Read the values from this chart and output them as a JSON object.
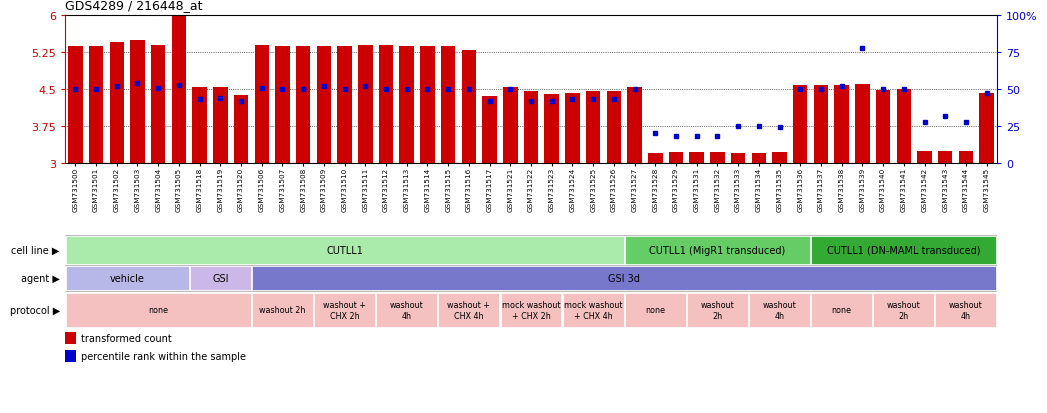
{
  "title": "GDS4289 / 216448_at",
  "gsm_ids": [
    "GSM731500",
    "GSM731501",
    "GSM731502",
    "GSM731503",
    "GSM731504",
    "GSM731505",
    "GSM731518",
    "GSM731519",
    "GSM731520",
    "GSM731506",
    "GSM731507",
    "GSM731508",
    "GSM731509",
    "GSM731510",
    "GSM731511",
    "GSM731512",
    "GSM731513",
    "GSM731514",
    "GSM731515",
    "GSM731516",
    "GSM731517",
    "GSM731521",
    "GSM731522",
    "GSM731523",
    "GSM731524",
    "GSM731525",
    "GSM731526",
    "GSM731527",
    "GSM731528",
    "GSM731529",
    "GSM731531",
    "GSM731532",
    "GSM731533",
    "GSM731534",
    "GSM731535",
    "GSM731536",
    "GSM731537",
    "GSM731538",
    "GSM731539",
    "GSM731540",
    "GSM731541",
    "GSM731542",
    "GSM731543",
    "GSM731544",
    "GSM731545"
  ],
  "bar_values": [
    5.38,
    5.38,
    5.45,
    5.5,
    5.4,
    6.0,
    4.55,
    4.55,
    4.38,
    5.4,
    5.38,
    5.38,
    5.38,
    5.38,
    5.4,
    5.4,
    5.38,
    5.38,
    5.38,
    5.3,
    4.35,
    4.55,
    4.45,
    4.4,
    4.42,
    4.45,
    4.45,
    4.55,
    3.2,
    3.22,
    3.22,
    3.22,
    3.2,
    3.2,
    3.22,
    4.58,
    4.58,
    4.58,
    4.6,
    4.48,
    4.5,
    3.25,
    3.25,
    3.25,
    4.42
  ],
  "percentile_values": [
    50,
    50,
    52,
    54,
    51,
    53,
    43,
    44,
    42,
    51,
    50,
    50,
    52,
    50,
    52,
    50,
    50,
    50,
    50,
    50,
    42,
    50,
    42,
    42,
    43,
    43,
    43,
    50,
    20,
    18,
    18,
    18,
    25,
    25,
    24,
    50,
    50,
    52,
    78,
    50,
    50,
    28,
    32,
    28,
    47
  ],
  "ylim": [
    3.0,
    6.0
  ],
  "yticks": [
    3.0,
    3.75,
    4.5,
    5.25,
    6.0
  ],
  "ytick_labels": [
    "3",
    "3.75",
    "4.5",
    "5.25",
    "6"
  ],
  "right_yticks": [
    0,
    25,
    50,
    75,
    100
  ],
  "right_ytick_labels": [
    "0",
    "25",
    "50",
    "75",
    "100%"
  ],
  "bar_color": "#cc0000",
  "percentile_color": "#0000cc",
  "bg_color": "#ffffff",
  "cell_line_groups": [
    {
      "label": "CUTLL1",
      "start": 0,
      "end": 27,
      "color": "#aaeaaa"
    },
    {
      "label": "CUTLL1 (MigR1 transduced)",
      "start": 27,
      "end": 36,
      "color": "#66cc66"
    },
    {
      "label": "CUTLL1 (DN-MAML transduced)",
      "start": 36,
      "end": 45,
      "color": "#33aa33"
    }
  ],
  "agent_groups": [
    {
      "label": "vehicle",
      "start": 0,
      "end": 6,
      "color": "#b8b8e8"
    },
    {
      "label": "GSI",
      "start": 6,
      "end": 9,
      "color": "#ccb8e8"
    },
    {
      "label": "GSI 3d",
      "start": 9,
      "end": 45,
      "color": "#7777cc"
    }
  ],
  "protocol_groups": [
    {
      "label": "none",
      "start": 0,
      "end": 9,
      "color": "#f4c0c0"
    },
    {
      "label": "washout 2h",
      "start": 9,
      "end": 12,
      "color": "#f4c0c0"
    },
    {
      "label": "washout +\nCHX 2h",
      "start": 12,
      "end": 15,
      "color": "#f4c0c0"
    },
    {
      "label": "washout\n4h",
      "start": 15,
      "end": 18,
      "color": "#f4c0c0"
    },
    {
      "label": "washout +\nCHX 4h",
      "start": 18,
      "end": 21,
      "color": "#f4c0c0"
    },
    {
      "label": "mock washout\n+ CHX 2h",
      "start": 21,
      "end": 24,
      "color": "#f4c0c0"
    },
    {
      "label": "mock washout\n+ CHX 4h",
      "start": 24,
      "end": 27,
      "color": "#f4c0c0"
    },
    {
      "label": "none",
      "start": 27,
      "end": 30,
      "color": "#f4c0c0"
    },
    {
      "label": "washout\n2h",
      "start": 30,
      "end": 33,
      "color": "#f4c0c0"
    },
    {
      "label": "washout\n4h",
      "start": 33,
      "end": 36,
      "color": "#f4c0c0"
    },
    {
      "label": "none",
      "start": 36,
      "end": 39,
      "color": "#f4c0c0"
    },
    {
      "label": "washout\n2h",
      "start": 39,
      "end": 42,
      "color": "#f4c0c0"
    },
    {
      "label": "washout\n4h",
      "start": 42,
      "end": 45,
      "color": "#f4c0c0"
    }
  ]
}
